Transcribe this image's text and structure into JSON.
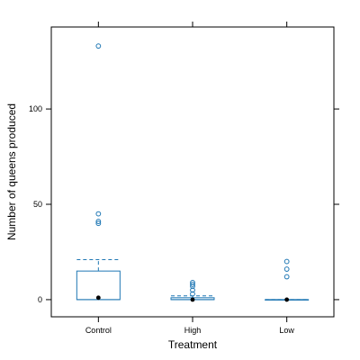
{
  "chart_data": {
    "type": "box",
    "xlabel": "Treatment",
    "ylabel": "Number of queens produced",
    "categories": [
      "Control",
      "High",
      "Low"
    ],
    "yticks": [
      0,
      50,
      100
    ],
    "ylim": [
      -9,
      143
    ],
    "grid": false,
    "box_color": "#1f77b4",
    "median_color": "#000000",
    "boxes": [
      {
        "category": "Control",
        "q1": 0,
        "median": 1,
        "q3": 15,
        "whisker_low": 0,
        "whisker_high": 21,
        "outliers": [
          40,
          41,
          45,
          133
        ]
      },
      {
        "category": "High",
        "q1": 0,
        "median": 0,
        "q3": 1,
        "whisker_low": 0,
        "whisker_high": 2,
        "outliers": [
          3,
          5,
          7,
          8,
          9
        ]
      },
      {
        "category": "Low",
        "q1": 0,
        "median": 0,
        "q3": 0,
        "whisker_low": 0,
        "whisker_high": 0,
        "outliers": [
          12,
          16,
          20
        ]
      }
    ]
  }
}
